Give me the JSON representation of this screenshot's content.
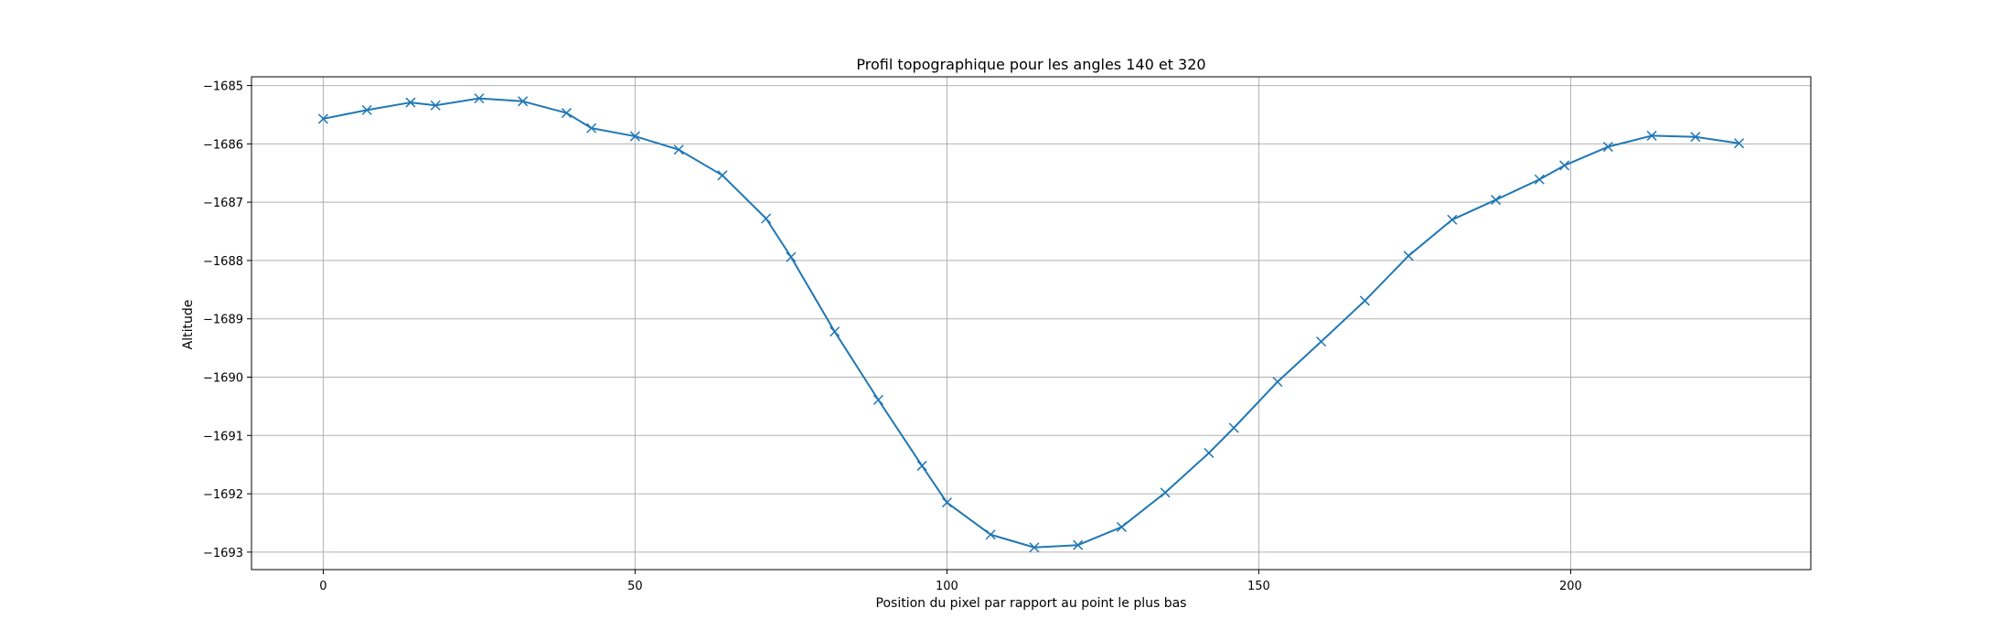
{
  "chart_data": {
    "type": "line",
    "title": "Profil topographique pour les angles 140 et 320",
    "xlabel": "Position du pixel par rapport au point le plus bas",
    "ylabel": "Altitude",
    "xlim": [
      -11.5,
      238.5
    ],
    "ylim": [
      -1693.3,
      -1684.85
    ],
    "xticks": [
      0,
      50,
      100,
      150,
      200
    ],
    "yticks": [
      -1685,
      -1686,
      -1687,
      -1688,
      -1689,
      -1690,
      -1691,
      -1692,
      -1693
    ],
    "grid": true,
    "marker": "x",
    "color": "#1f77b4",
    "series": [
      {
        "x": [
          0,
          7,
          14,
          18,
          25,
          32,
          39,
          43,
          50,
          57,
          64,
          71,
          75,
          82,
          89,
          96,
          100,
          107,
          114,
          121,
          128,
          135,
          142,
          146,
          153,
          160,
          167,
          174,
          181,
          188,
          195,
          199,
          206,
          213,
          220,
          227
        ],
        "y": [
          -1685.57,
          -1685.42,
          -1685.29,
          -1685.34,
          -1685.22,
          -1685.27,
          -1685.47,
          -1685.73,
          -1685.87,
          -1686.1,
          -1686.54,
          -1687.28,
          -1687.94,
          -1689.22,
          -1690.39,
          -1691.52,
          -1692.15,
          -1692.7,
          -1692.92,
          -1692.88,
          -1692.57,
          -1691.98,
          -1691.3,
          -1690.87,
          -1690.08,
          -1689.39,
          -1688.69,
          -1687.92,
          -1687.3,
          -1686.96,
          -1686.61,
          -1686.37,
          -1686.05,
          -1685.86,
          -1685.88,
          -1685.99
        ]
      }
    ]
  }
}
